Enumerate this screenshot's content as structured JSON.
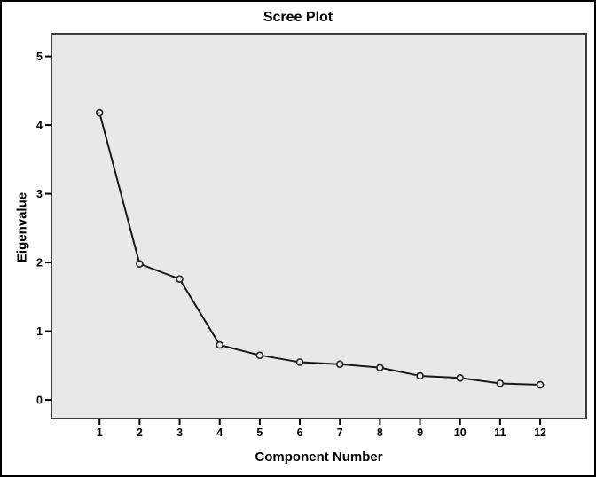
{
  "chart_data": {
    "type": "line",
    "title": "Scree Plot",
    "xlabel": "Component Number",
    "ylabel": "Eigenvalue",
    "series_name": "Eigenvalue",
    "x": [
      1,
      2,
      3,
      4,
      5,
      6,
      7,
      8,
      9,
      10,
      11,
      12
    ],
    "values": [
      4.18,
      1.98,
      1.76,
      0.8,
      0.65,
      0.55,
      0.52,
      0.47,
      0.35,
      0.32,
      0.24,
      0.22
    ],
    "x_ticks": [
      "1",
      "2",
      "3",
      "4",
      "5",
      "6",
      "7",
      "8",
      "9",
      "10",
      "11",
      "12"
    ],
    "y_ticks": [
      "0",
      "1",
      "2",
      "3",
      "4",
      "5"
    ],
    "y_tick_values": [
      0,
      1,
      2,
      3,
      4,
      5
    ],
    "x_tick_values": [
      1,
      2,
      3,
      4,
      5,
      6,
      7,
      8,
      9,
      10,
      11,
      12
    ],
    "xlim": [
      -0.2,
      13.15
    ],
    "ylim": [
      -0.27,
      5.33
    ],
    "grid": "off",
    "legend": "none",
    "marker": "open-circle",
    "colors": {
      "plot_bg": "#e8e8e8",
      "plot_border": "#3d3d3d",
      "line": "#1a1a1a",
      "marker_stroke": "#2a2a2a",
      "tick": "#000000",
      "canvas_border": "#000000"
    }
  }
}
